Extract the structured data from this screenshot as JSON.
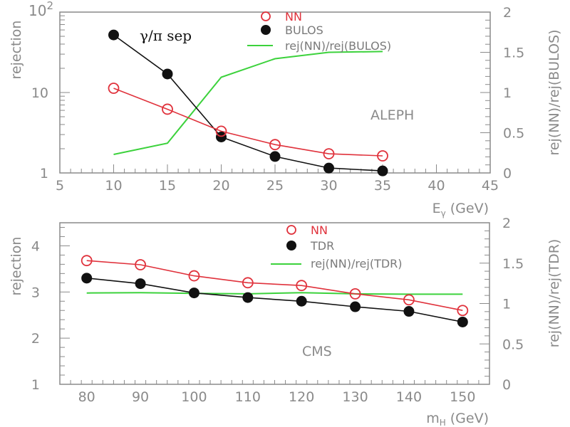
{
  "colors": {
    "nn": "#e0323c",
    "ref": "#111111",
    "ratio": "#3cd23c",
    "axis": "#8a8a8a"
  },
  "chart_data": [
    {
      "type": "line",
      "annotation_experiment": "ALEPH",
      "annotation_title": "γ/π sep",
      "xlabel_main": "E",
      "xlabel_sub": "γ",
      "xlabel_unit": "(GeV)",
      "ylabel": "rejection",
      "ylabel_right": "rej(NN)/rej(BULOS)",
      "xlim": [
        5,
        45
      ],
      "ylim": [
        1,
        100
      ],
      "yscale": "log",
      "ylim_right": [
        0,
        2
      ],
      "x_ticks": [
        "5",
        "10",
        "15",
        "20",
        "25",
        "30",
        "35",
        "40",
        "45"
      ],
      "y_ticks": [
        "1",
        "10"
      ],
      "y_top_base": "10",
      "y_top_exp": "2",
      "y_ticks_right": [
        "0",
        "0.5",
        "1",
        "1.5",
        "2"
      ],
      "legend": [
        "NN",
        "BULOS",
        "rej(NN)/rej(BULOS)"
      ],
      "legend_position": "top-center",
      "x": [
        10,
        15,
        20,
        25,
        30,
        35
      ],
      "series": [
        {
          "name": "NN",
          "axis": "left",
          "values": [
            11.3,
            6.2,
            3.3,
            2.25,
            1.73,
            1.63
          ]
        },
        {
          "name": "BULOS",
          "axis": "left",
          "values": [
            52,
            17,
            2.8,
            1.6,
            1.15,
            1.06
          ]
        },
        {
          "name": "rej(NN)/rej(BULOS)",
          "axis": "right",
          "values": [
            0.23,
            0.37,
            1.19,
            1.42,
            1.5,
            1.51
          ]
        }
      ]
    },
    {
      "type": "line",
      "annotation_experiment": "CMS",
      "xlabel_main": "m",
      "xlabel_sub": "H",
      "xlabel_unit": "(GeV)",
      "ylabel": "rejection",
      "ylabel_right": "rej(NN)/rej(TDR)",
      "xlim": [
        75,
        155
      ],
      "ylim": [
        1,
        4.5
      ],
      "yscale": "linear",
      "ylim_right": [
        0,
        2
      ],
      "x_ticks": [
        "80",
        "90",
        "100",
        "110",
        "120",
        "130",
        "140",
        "150"
      ],
      "y_ticks": [
        "1",
        "2",
        "3",
        "4"
      ],
      "y_ticks_right": [
        "0",
        "0.5",
        "1",
        "1.5",
        "2"
      ],
      "legend": [
        "NN",
        "TDR",
        "rej(NN)/rej(TDR)"
      ],
      "legend_position": "top-center",
      "x": [
        80,
        90,
        100,
        110,
        120,
        130,
        140,
        150
      ],
      "series": [
        {
          "name": "NN",
          "axis": "left",
          "values": [
            3.68,
            3.59,
            3.35,
            3.2,
            3.14,
            2.96,
            2.83,
            2.6
          ]
        },
        {
          "name": "TDR",
          "axis": "left",
          "values": [
            3.3,
            3.18,
            2.98,
            2.88,
            2.8,
            2.68,
            2.58,
            2.35
          ]
        },
        {
          "name": "rej(NN)/rej(TDR)",
          "axis": "right",
          "values": [
            1.13,
            1.135,
            1.125,
            1.12,
            1.135,
            1.12,
            1.115,
            1.115
          ]
        }
      ]
    }
  ]
}
